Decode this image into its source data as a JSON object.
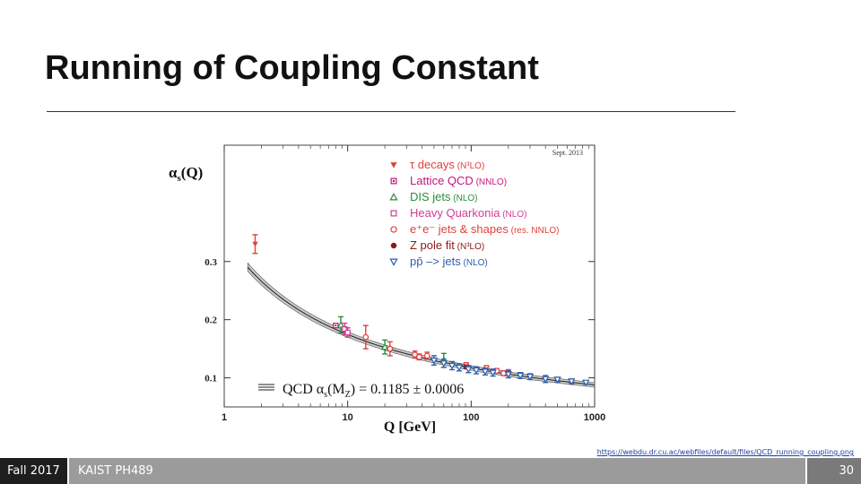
{
  "slide": {
    "title": "Running of Coupling Constant",
    "source": "https://webdu.dr.cu.ac/webfiles/default/files/QCD_running_coupling.png"
  },
  "footer": {
    "term": "Fall 2017",
    "course": "KAIST PH489",
    "page": "30"
  },
  "chart_data": {
    "type": "scatter",
    "date_label": "Sept. 2013",
    "ylabel_main": "α",
    "ylabel_sub": "s",
    "ylabel_arg": "(Q)",
    "xlabel": "Q [GeV]",
    "x_scale": "log",
    "xlim": [
      1,
      1000
    ],
    "ylim": [
      0.05,
      0.5
    ],
    "x_ticks": [
      1,
      10,
      100,
      1000
    ],
    "x_tick_labels": [
      "1",
      "10",
      "100",
      "1000"
    ],
    "y_ticks": [
      0.1,
      0.2,
      0.3
    ],
    "y_tick_labels": [
      "0.1",
      "0.2",
      "0.3"
    ],
    "grid": false,
    "legend_position": "top-center",
    "band_label": "QCD α",
    "band_label_sub": "s",
    "band_label_arg": "(M",
    "band_label_argsub": "Z",
    "band_label_tail": ") = 0.1185 ± 0.0006",
    "band": {
      "alpha_mz": 0.1185,
      "uncertainty": 0.0006,
      "mz": 91.19
    },
    "series": [
      {
        "name": "τ decays",
        "order": "(N³LO)",
        "color": "#e0413c",
        "marker": "triangle-down-filled",
        "points": [
          {
            "x": 1.78,
            "y": 0.33,
            "err": 0.016
          }
        ]
      },
      {
        "name": "Lattice QCD",
        "order": "(NNLO)",
        "color": "#c0187e",
        "marker": "square-dot",
        "points": [
          {
            "x": 8.0,
            "y": 0.19,
            "err": 0.003
          }
        ]
      },
      {
        "name": "DIS jets",
        "order": "(NLO)",
        "color": "#2c8c3c",
        "marker": "triangle-up-open",
        "points": [
          {
            "x": 8.8,
            "y": 0.191,
            "err": 0.014
          },
          {
            "x": 20,
            "y": 0.153,
            "err": 0.012
          },
          {
            "x": 60,
            "y": 0.13,
            "err": 0.012
          }
        ]
      },
      {
        "name": "Heavy Quarkonia",
        "order": "(NLO)",
        "color": "#d23c96",
        "marker": "square-open",
        "points": [
          {
            "x": 9.46,
            "y": 0.184,
            "err": 0.01
          },
          {
            "x": 10.0,
            "y": 0.178,
            "err": 0.008
          }
        ]
      },
      {
        "name": "e⁺e⁻ jets & shapes",
        "order": "(res. NNLO)",
        "color": "#e0413c",
        "marker": "circle-open",
        "points": [
          {
            "x": 14,
            "y": 0.17,
            "err": 0.02
          },
          {
            "x": 22,
            "y": 0.15,
            "err": 0.012
          },
          {
            "x": 35,
            "y": 0.14,
            "err": 0.006
          },
          {
            "x": 38,
            "y": 0.136,
            "err": 0.005
          },
          {
            "x": 44,
            "y": 0.138,
            "err": 0.006
          },
          {
            "x": 91,
            "y": 0.122,
            "err": 0.004
          },
          {
            "x": 133,
            "y": 0.117,
            "err": 0.004
          },
          {
            "x": 161,
            "y": 0.112,
            "err": 0.004
          },
          {
            "x": 183,
            "y": 0.108,
            "err": 0.004
          },
          {
            "x": 200,
            "y": 0.11,
            "err": 0.004
          }
        ]
      },
      {
        "name": "Z pole fit",
        "order": "(N³LO)",
        "color": "#8b1a1a",
        "marker": "circle-filled",
        "points": [
          {
            "x": 91.19,
            "y": 0.119,
            "err": 0.003
          }
        ]
      },
      {
        "name": "pp̄ –> jets",
        "order": "(NLO)",
        "color": "#2e5fb0",
        "marker": "triangle-down-open",
        "points": [
          {
            "x": 50,
            "y": 0.13,
            "err": 0.008
          },
          {
            "x": 60,
            "y": 0.125,
            "err": 0.007
          },
          {
            "x": 70,
            "y": 0.121,
            "err": 0.007
          },
          {
            "x": 80,
            "y": 0.118,
            "err": 0.006
          },
          {
            "x": 95,
            "y": 0.115,
            "err": 0.006
          },
          {
            "x": 110,
            "y": 0.113,
            "err": 0.006
          },
          {
            "x": 130,
            "y": 0.111,
            "err": 0.006
          },
          {
            "x": 150,
            "y": 0.109,
            "err": 0.006
          },
          {
            "x": 200,
            "y": 0.106,
            "err": 0.006
          },
          {
            "x": 250,
            "y": 0.104,
            "err": 0.005
          },
          {
            "x": 300,
            "y": 0.102,
            "err": 0.005
          },
          {
            "x": 400,
            "y": 0.098,
            "err": 0.006
          },
          {
            "x": 500,
            "y": 0.097,
            "err": 0.004
          },
          {
            "x": 650,
            "y": 0.094,
            "err": 0.004
          },
          {
            "x": 850,
            "y": 0.092,
            "err": 0.003
          }
        ]
      }
    ]
  }
}
